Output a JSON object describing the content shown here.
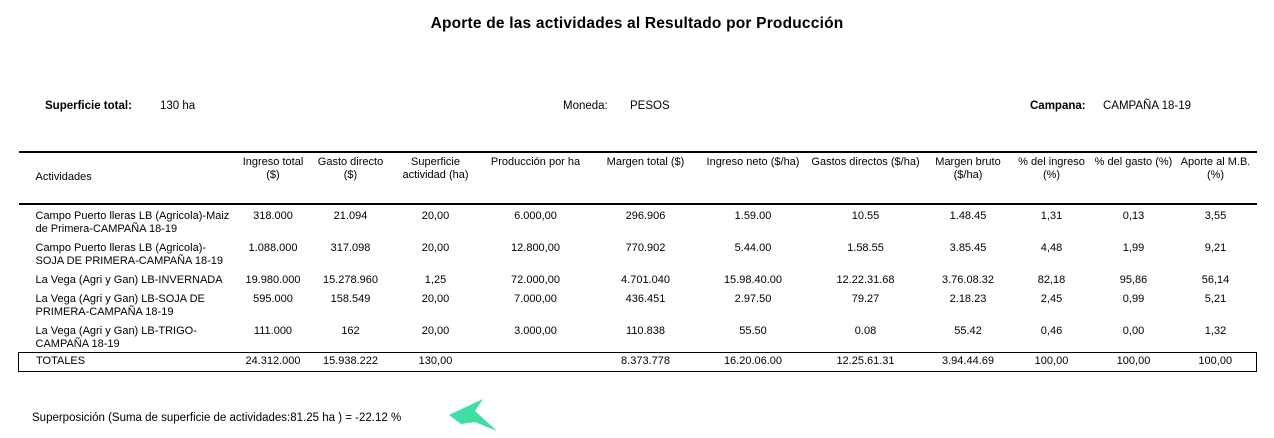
{
  "title": "Aporte de las actividades al Resultado por Producción",
  "info": {
    "superficie_label": "Superficie total:",
    "superficie_value": "130 ha",
    "moneda_label": "Moneda:",
    "moneda_value": "PESOS",
    "campana_label": "Campana:",
    "campana_value": "CAMPAÑA 18-19"
  },
  "table": {
    "columns": [
      "Actividades",
      "Ingreso total  ($)",
      "Gasto directo ($)",
      "Superficie actividad (ha)",
      "Producción por ha",
      "Margen total ($)",
      "Ingreso neto ($/ha)",
      "Gastos directos ($/ha)",
      "Margen bruto ($/ha)",
      "% del ingreso (%)",
      "% del gasto (%)",
      "Aporte al M.B. (%)"
    ],
    "rows": [
      [
        "Campo Puerto lleras LB (Agricola)-Maiz de Primera-CAMPAÑA 18-19",
        "318.000",
        "21.094",
        "20,00",
        "6.000,00",
        "296.906",
        "1.59.00",
        "10.55",
        "1.48.45",
        "1,31",
        "0,13",
        "3,55"
      ],
      [
        "Campo Puerto lleras LB (Agricola)-SOJA DE PRIMERA-CAMPAÑA 18-19",
        "1.088.000",
        "317.098",
        "20,00",
        "12.800,00",
        "770.902",
        "5.44.00",
        "1.58.55",
        "3.85.45",
        "4,48",
        "1,99",
        "9,21"
      ],
      [
        "La Vega (Agri y Gan) LB-INVERNADA",
        "19.980.000",
        "15.278.960",
        "1,25",
        "72.000,00",
        "4.701.040",
        "15.98.40.00",
        "12.22.31.68",
        "3.76.08.32",
        "82,18",
        "95,86",
        "56,14"
      ],
      [
        "La Vega (Agri y Gan) LB-SOJA DE PRIMERA-CAMPAÑA 18-19",
        "595.000",
        "158.549",
        "20,00",
        "7.000,00",
        "436.451",
        "2.97.50",
        "79.27",
        "2.18.23",
        "2,45",
        "0,99",
        "5,21"
      ],
      [
        "La Vega (Agri y Gan) LB-TRIGO-CAMPAÑA 18-19",
        "111.000",
        "162",
        "20,00",
        "3.000,00",
        "110.838",
        "55.50",
        "0.08",
        "55.42",
        "0,46",
        "0,00",
        "1,32"
      ]
    ],
    "totals": [
      "TOTALES",
      "24.312.000",
      "15.938.222",
      "130,00",
      "",
      "8.373.778",
      "16.20.06.00",
      "12.25.61.31",
      "3.94.44.69",
      "100,00",
      "100,00",
      "100,00"
    ]
  },
  "footer": {
    "superposicion": "Superposición (Suma de superficie de actividades:81.25 ha ) = -22.12 %"
  },
  "cursor_color": "#3fdfa2"
}
